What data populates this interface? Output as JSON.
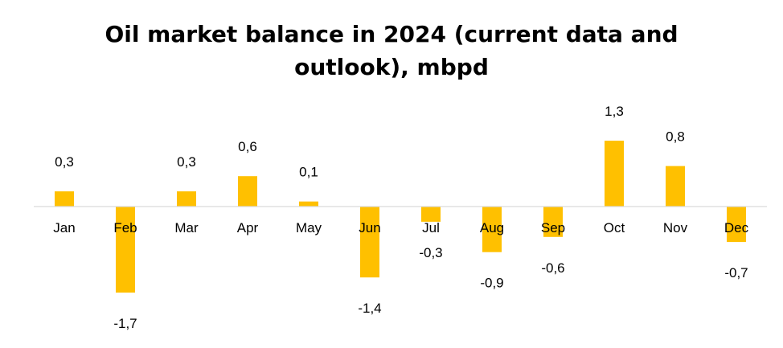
{
  "chart_data": {
    "type": "bar",
    "title_lines": [
      "Oil market balance in 2024 (current data and",
      "outlook), mbpd"
    ],
    "categories": [
      "Jan",
      "Feb",
      "Mar",
      "Apr",
      "May",
      "Jun",
      "Jul",
      "Aug",
      "Sep",
      "Oct",
      "Nov",
      "Dec"
    ],
    "values": [
      0.3,
      -1.7,
      0.3,
      0.6,
      0.1,
      -1.4,
      -0.3,
      -0.9,
      -0.6,
      1.3,
      0.8,
      -0.7
    ],
    "value_labels": [
      "0,3",
      "-1,7",
      "0,3",
      "0,6",
      "0,1",
      "-1,4",
      "-0,3",
      "-0,9",
      "-0,6",
      "1,3",
      "0,8",
      "-0,7"
    ],
    "bar_color": "#FFC000",
    "axis_color": "#D9D9D9",
    "xlabel": "",
    "ylabel": "",
    "ylim": [
      -2,
      2
    ],
    "grid": false,
    "legend": "none"
  }
}
